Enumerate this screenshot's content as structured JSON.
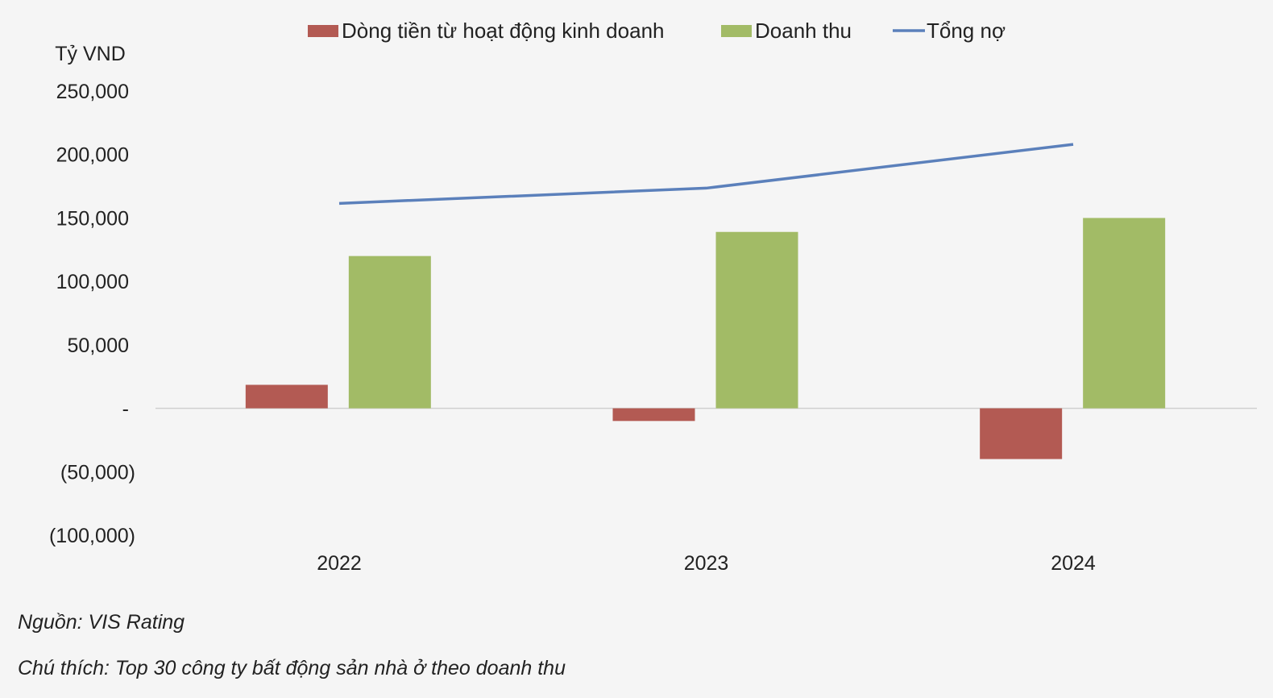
{
  "chart_data": {
    "type": "bar",
    "ylabel": "Tỷ VND",
    "categories": [
      "2022",
      "2023",
      "2024"
    ],
    "ylim": [
      -100000,
      250000
    ],
    "yticks": [
      250000,
      200000,
      150000,
      100000,
      50000,
      0,
      -50000,
      -100000
    ],
    "ytick_labels": [
      "250,000",
      "200,000",
      "150,000",
      "100,000",
      "50,000",
      "-",
      "(50,000)",
      "(100,000)"
    ],
    "grid": false,
    "legend": "top",
    "series": [
      {
        "name": "Dòng tiền từ hoạt động kinh doanh",
        "kind": "bar",
        "color": "#b35a53",
        "values": [
          18500,
          -10000,
          -40000
        ]
      },
      {
        "name": "Doanh thu",
        "kind": "bar",
        "color": "#a2bb66",
        "values": [
          120000,
          139000,
          150000
        ]
      },
      {
        "name": "Tổng nợ",
        "kind": "line",
        "color": "#5b80bb",
        "values": [
          161500,
          173500,
          208000
        ]
      }
    ]
  },
  "notes": {
    "source": "Nguồn: VIS Rating",
    "caption": "Chú thích: Top 30 công ty bất động sản nhà ở theo doanh thu"
  }
}
